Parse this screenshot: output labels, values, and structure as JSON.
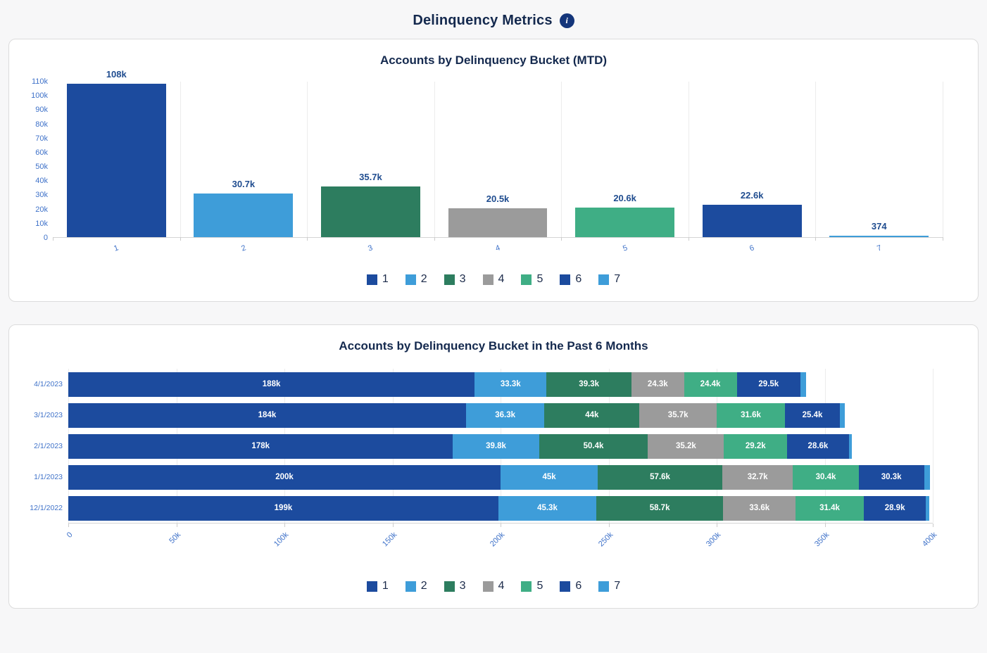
{
  "page": {
    "title": "Delinquency Metrics",
    "info_icon": "i"
  },
  "colors": {
    "series": [
      "#1c4b9e",
      "#3e9dd9",
      "#2d7d5f",
      "#9b9b9b",
      "#3fae85",
      "#1c4b9e",
      "#3e9dd9"
    ],
    "axis_label": "#3f72c9",
    "title_navy": "#14294e"
  },
  "chart_data": [
    {
      "type": "bar",
      "title": "Accounts by Delinquency Bucket (MTD)",
      "categories": [
        "1",
        "2",
        "3",
        "4",
        "5",
        "6",
        "7"
      ],
      "values": [
        108000,
        30700,
        35700,
        20500,
        20600,
        22600,
        374
      ],
      "labels": [
        "108k",
        "30.7k",
        "35.7k",
        "20.5k",
        "20.6k",
        "22.6k",
        "374"
      ],
      "ylim": [
        0,
        110000
      ],
      "yticks": [
        "110k",
        "100k",
        "90k",
        "80k",
        "70k",
        "60k",
        "50k",
        "40k",
        "30k",
        "20k",
        "10k",
        "0"
      ],
      "legend": [
        "1",
        "2",
        "3",
        "4",
        "5",
        "6",
        "7"
      ],
      "grid": "vertical-category-lines",
      "legend_position": "bottom"
    },
    {
      "type": "bar",
      "orientation": "horizontal-stacked",
      "title": "Accounts by Delinquency Bucket in the Past 6 Months",
      "categories": [
        "4/1/2023",
        "3/1/2023",
        "2/1/2023",
        "1/1/2023",
        "12/1/2022"
      ],
      "series": [
        {
          "name": "1",
          "values": [
            188000,
            184000,
            178000,
            200000,
            199000
          ],
          "labels": [
            "188k",
            "184k",
            "178k",
            "200k",
            "199k"
          ]
        },
        {
          "name": "2",
          "values": [
            33300,
            36300,
            39800,
            45000,
            45300
          ],
          "labels": [
            "33.3k",
            "36.3k",
            "39.8k",
            "45k",
            "45.3k"
          ]
        },
        {
          "name": "3",
          "values": [
            39300,
            44000,
            50400,
            57600,
            58700
          ],
          "labels": [
            "39.3k",
            "44k",
            "50.4k",
            "57.6k",
            "58.7k"
          ]
        },
        {
          "name": "4",
          "values": [
            24300,
            35700,
            35200,
            32700,
            33600
          ],
          "labels": [
            "24.3k",
            "35.7k",
            "35.2k",
            "32.7k",
            "33.6k"
          ]
        },
        {
          "name": "5",
          "values": [
            24400,
            31600,
            29200,
            30400,
            31400
          ],
          "labels": [
            "24.4k",
            "31.6k",
            "29.2k",
            "30.4k",
            "31.4k"
          ]
        },
        {
          "name": "6",
          "values": [
            29500,
            25400,
            28600,
            30300,
            28900
          ],
          "labels": [
            "29.5k",
            "25.4k",
            "28.6k",
            "30.3k",
            "28.9k"
          ]
        },
        {
          "name": "7",
          "values": [
            2500,
            2200,
            1500,
            2800,
            1500
          ],
          "labels": [
            "",
            "",
            "",
            "",
            ""
          ]
        }
      ],
      "xlim": [
        0,
        400000
      ],
      "xticks": [
        "0",
        "50k",
        "100k",
        "150k",
        "200k",
        "250k",
        "300k",
        "350k",
        "400k"
      ],
      "legend": [
        "1",
        "2",
        "3",
        "4",
        "5",
        "6",
        "7"
      ],
      "grid": "vertical-value-lines",
      "legend_position": "bottom"
    }
  ]
}
